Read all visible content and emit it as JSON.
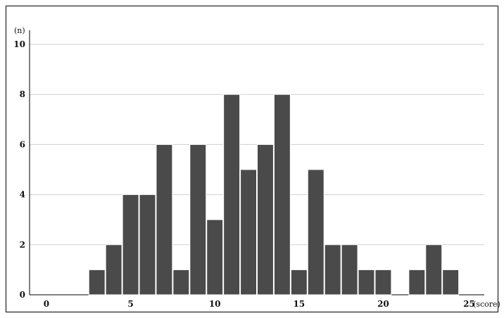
{
  "chart_data": {
    "type": "bar",
    "title": "",
    "xlabel": "(score)",
    "ylabel": "(n)",
    "x_ticks": [
      "0",
      "5",
      "10",
      "15",
      "20",
      "25"
    ],
    "y_ticks": [
      "0",
      "2",
      "4",
      "6",
      "8",
      "10"
    ],
    "xlim": [
      -1,
      26
    ],
    "ylim": [
      0,
      10
    ],
    "grid": true,
    "categories": [
      3,
      4,
      5,
      6,
      7,
      8,
      9,
      10,
      11,
      12,
      13,
      14,
      15,
      16,
      17,
      18,
      19,
      20,
      22,
      23,
      24
    ],
    "values": [
      1,
      2,
      4,
      4,
      6,
      1,
      6,
      3,
      8,
      5,
      6,
      8,
      1,
      5,
      2,
      2,
      1,
      1,
      1,
      2,
      1
    ],
    "bar_color": "#4a4a4a",
    "grid_color": "#cfcfcf"
  }
}
